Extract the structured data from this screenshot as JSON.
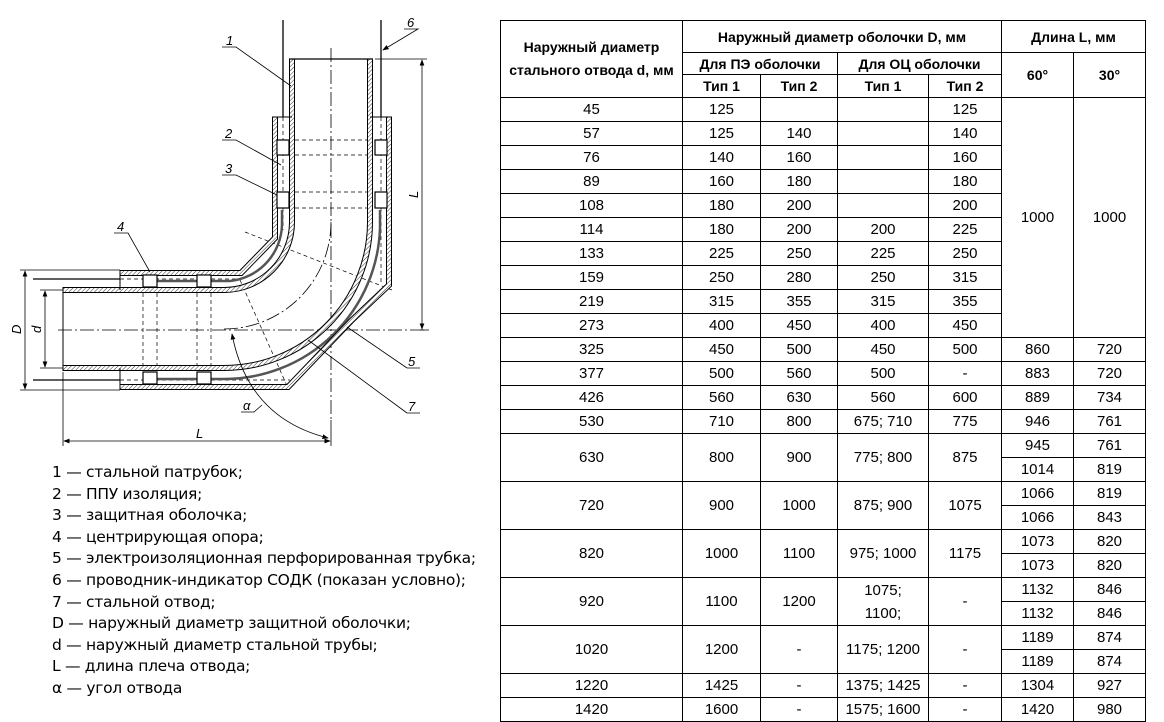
{
  "drawing": {
    "labels": {
      "n1": "1",
      "n2": "2",
      "n3": "3",
      "n4": "4",
      "n5": "5",
      "n6": "6",
      "n7": "7",
      "alpha": "α",
      "D": "D",
      "d": "d",
      "L_bottom": "L",
      "L_right": "L"
    }
  },
  "legend": [
    "1 — стальной патрубок;",
    "2 — ППУ изоляция;",
    "3 — защитная оболочка;",
    "4 — центрирующая опора;",
    "5 — электроизоляционная перфорированная трубка;",
    "6 — проводник-индикатор СОДК (показан условно);",
    "7 — стальной отвод;",
    "D — наружный диаметр защитной оболочки;",
    "d — наружный диаметр стальной трубы;",
    "L — длина плеча отвода;",
    "α — угол отвода"
  ],
  "table": {
    "header": {
      "d": "Наружный диаметр стального отвода d, мм",
      "D": "Наружный диаметр оболочки D, мм",
      "L": "Длина L, мм",
      "pe": "Для ПЭ оболочки",
      "oc": "Для ОЦ оболочки",
      "type1": "Тип 1",
      "type2": "Тип 2",
      "deg60": "60°",
      "deg30": "30°"
    },
    "merged_L": {
      "deg60": "1000",
      "deg30": "1000"
    },
    "rows": [
      {
        "d": "45",
        "pe1": "125",
        "pe2": "",
        "oc1": "",
        "oc2": "125"
      },
      {
        "d": "57",
        "pe1": "125",
        "pe2": "140",
        "oc1": "",
        "oc2": "140"
      },
      {
        "d": "76",
        "pe1": "140",
        "pe2": "160",
        "oc1": "",
        "oc2": "160"
      },
      {
        "d": "89",
        "pe1": "160",
        "pe2": "180",
        "oc1": "",
        "oc2": "180"
      },
      {
        "d": "108",
        "pe1": "180",
        "pe2": "200",
        "oc1": "",
        "oc2": "200"
      },
      {
        "d": "114",
        "pe1": "180",
        "pe2": "200",
        "oc1": "200",
        "oc2": "225"
      },
      {
        "d": "133",
        "pe1": "225",
        "pe2": "250",
        "oc1": "225",
        "oc2": "250"
      },
      {
        "d": "159",
        "pe1": "250",
        "pe2": "280",
        "oc1": "250",
        "oc2": "315"
      },
      {
        "d": "219",
        "pe1": "315",
        "pe2": "355",
        "oc1": "315",
        "oc2": "355"
      },
      {
        "d": "273",
        "pe1": "400",
        "pe2": "450",
        "oc1": "400",
        "oc2": "450"
      },
      {
        "d": "325",
        "pe1": "450",
        "pe2": "500",
        "oc1": "450",
        "oc2": "500",
        "L": [
          [
            "860",
            "720"
          ]
        ]
      },
      {
        "d": "377",
        "pe1": "500",
        "pe2": "560",
        "oc1": "500",
        "oc2": "-",
        "L": [
          [
            "883",
            "720"
          ]
        ]
      },
      {
        "d": "426",
        "pe1": "560",
        "pe2": "630",
        "oc1": "560",
        "oc2": "600",
        "L": [
          [
            "889",
            "734"
          ]
        ]
      },
      {
        "d": "530",
        "pe1": "710",
        "pe2": "800",
        "oc1": "675; 710",
        "oc2": "775",
        "L": [
          [
            "946",
            "761"
          ]
        ]
      },
      {
        "d": "630",
        "pe1": "800",
        "pe2": "900",
        "oc1": "775; 800",
        "oc2": "875",
        "L": [
          [
            "945",
            "761"
          ],
          [
            "1014",
            "819"
          ]
        ]
      },
      {
        "d": "720",
        "pe1": "900",
        "pe2": "1000",
        "oc1": "875; 900",
        "oc2": "1075",
        "L": [
          [
            "1066",
            "819"
          ],
          [
            "1066",
            "843"
          ]
        ]
      },
      {
        "d": "820",
        "pe1": "1000",
        "pe2": "1100",
        "oc1": "975; 1000",
        "oc2": "1175",
        "L": [
          [
            "1073",
            "820"
          ],
          [
            "1073",
            "820"
          ]
        ]
      },
      {
        "d": "920",
        "pe1": "1100",
        "pe2": "1200",
        "oc1": "1075;\n1100;",
        "oc2": "-",
        "L": [
          [
            "1132",
            "846"
          ],
          [
            "1132",
            "846"
          ]
        ]
      },
      {
        "d": "1020",
        "pe1": "1200",
        "pe2": "-",
        "oc1": "1175; 1200",
        "oc2": "-",
        "L": [
          [
            "1189",
            "874"
          ],
          [
            "1189",
            "874"
          ]
        ]
      },
      {
        "d": "1220",
        "pe1": "1425",
        "pe2": "-",
        "oc1": "1375; 1425",
        "oc2": "-",
        "L": [
          [
            "1304",
            "927"
          ]
        ]
      },
      {
        "d": "1420",
        "pe1": "1600",
        "pe2": "-",
        "oc1": "1575; 1600",
        "oc2": "-",
        "L": [
          [
            "1420",
            "980"
          ]
        ]
      }
    ]
  }
}
